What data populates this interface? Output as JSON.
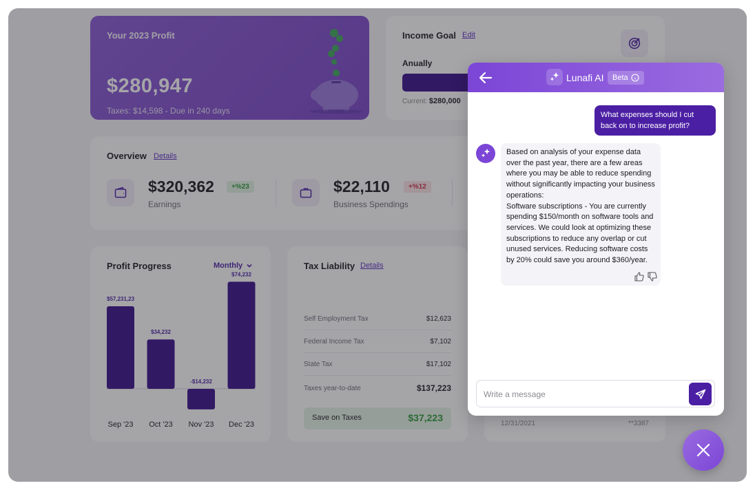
{
  "profit_card": {
    "title": "Your 2023 Profit",
    "value": "$280,947",
    "subtitle": "Taxes: $14,598 - Due in 240 days"
  },
  "income_goal": {
    "title": "Income Goal",
    "edit_label": "Edit",
    "period": "Anually",
    "progress_fraction": 0.65,
    "current_label": "Current:",
    "current_value": "$280,000"
  },
  "overview": {
    "title": "Overview",
    "details_label": "Details",
    "stats": [
      {
        "value": "$320,362",
        "badge": "+%23",
        "badge_color": "#2e9a3a",
        "badge_bg": "#e2f3e2",
        "label": "Earnings"
      },
      {
        "value": "$22,110",
        "badge": "+%12",
        "badge_color": "#d0334a",
        "badge_bg": "#fbe3e6",
        "label": "Business Spendings"
      }
    ]
  },
  "profit_progress": {
    "title": "Profit Progress",
    "period_select": "Monthly"
  },
  "chart_data": {
    "type": "bar",
    "categories": [
      "Sep '23",
      "Oct '23",
      "Nov '23",
      "Dec '23"
    ],
    "values": [
      57231.23,
      34232,
      -14232,
      74232
    ],
    "data_labels": [
      "$57,231,23",
      "$34,232",
      "-$14,232",
      "$74,232"
    ]
  },
  "tax_liability": {
    "title": "Tax Liability",
    "details_label": "Details",
    "rows": [
      {
        "label": "Self Employment Tax",
        "value": "$12,623"
      },
      {
        "label": "Federal Income Tax",
        "value": "$7,102"
      },
      {
        "label": "State Tax",
        "value": "$17,102"
      },
      {
        "label": "Taxes year-to-date",
        "value": "$137,223"
      }
    ],
    "save": {
      "label": "Save on Taxes",
      "value": "$37,223"
    }
  },
  "transactions": {
    "date": "12/31/2021",
    "account": "**3387"
  },
  "chat": {
    "assistant_name": "Lunafi AI",
    "beta_label": "Beta",
    "user_message": "What expenses should I cut back on to increase profit?",
    "bot_message": [
      "Based on analysis of your expense data over the past year, there are a few areas where you may be able to reduce spending without significantly impacting your business operations:",
      "Software subscriptions - You are currently spending $150/month on software tools and services. We could look at optimizing these subscriptions to reduce any overlap or cut unused services. Reducing software costs by 20% could save you around $360/year."
    ],
    "input_placeholder": "Write a message"
  },
  "colors": {
    "accent": "#4b1fa3",
    "brand_purple": "#7b45d6",
    "bar": "#3a0f8a",
    "positive": "#2e9a3a",
    "negative": "#d0334a"
  }
}
